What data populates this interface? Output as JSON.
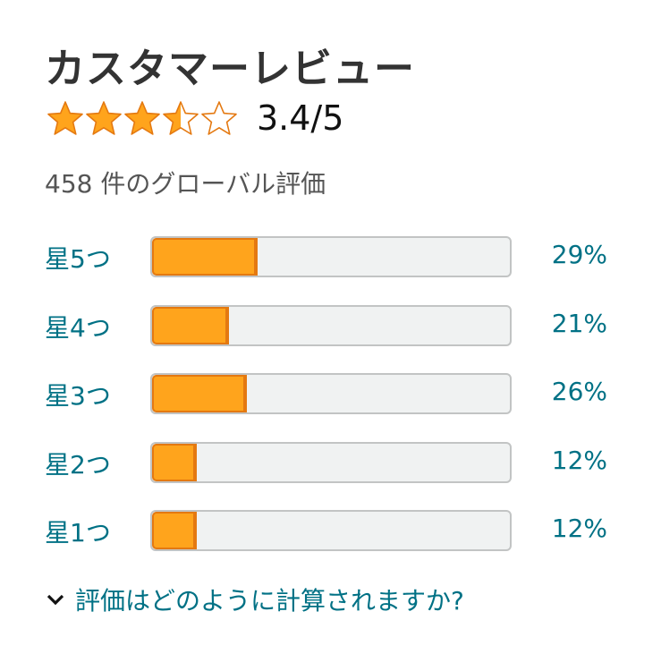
{
  "header": {
    "title": "カスタマーレビュー"
  },
  "rating": {
    "text": "3.4/5",
    "star_fill": [
      1,
      1,
      1,
      0.5,
      0
    ],
    "total_text": "458 件のグローバル評価"
  },
  "colors": {
    "star": "#ffa41c",
    "star_stroke": "#e47911",
    "link": "#007185",
    "bar_bg": "#f0f2f2"
  },
  "histogram": [
    {
      "label": "星5つ",
      "percent": 29,
      "percent_text": "29%"
    },
    {
      "label": "星4つ",
      "percent": 21,
      "percent_text": "21%"
    },
    {
      "label": "星3つ",
      "percent": 26,
      "percent_text": "26%"
    },
    {
      "label": "星2つ",
      "percent": 12,
      "percent_text": "12%"
    },
    {
      "label": "星1つ",
      "percent": 12,
      "percent_text": "12%"
    }
  ],
  "footer": {
    "icon": "chevron-down-icon",
    "link": "評価はどのように計算されますか?"
  }
}
